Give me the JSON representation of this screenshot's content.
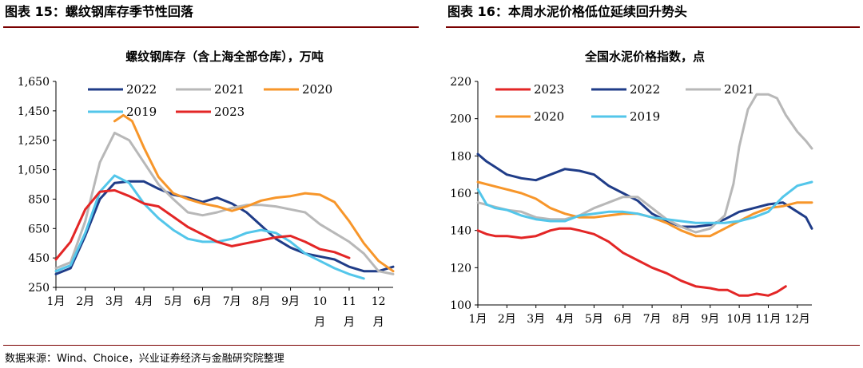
{
  "headers": {
    "left": "图表 15：螺纹钢库存季节性回落",
    "right": "图表 16：本周水泥价格低位延续回升势头"
  },
  "source": "数据来源：Wind、Choice，兴业证券经济与金融研究院整理",
  "colors": {
    "2023": "#e32626",
    "2022": "#1f3c88",
    "2021": "#b8b8b8",
    "2020": "#f7962a",
    "2019": "#53c6ea",
    "header_rule": "#7a0000"
  },
  "chart_data": [
    {
      "type": "line",
      "title": "螺纹钢库存（含上海全部仓库），万吨",
      "ylim": [
        250,
        1650
      ],
      "yticks": [
        "1,650",
        "1,450",
        "1,250",
        "1,050",
        "850",
        "650",
        "450",
        "250"
      ],
      "ytick_values": [
        1650,
        1450,
        1250,
        1050,
        850,
        650,
        450,
        250
      ],
      "xticks": [
        "1月",
        "2月",
        "3月",
        "4月",
        "5月",
        "6月",
        "7月",
        "8月",
        "9月",
        "10",
        "11",
        "12"
      ],
      "xticks_sub": [
        "",
        "",
        "",
        "",
        "",
        "",
        "",
        "",
        "",
        "月",
        "月",
        "月"
      ],
      "xlim": [
        0,
        11.5
      ],
      "legend": "top",
      "series": [
        {
          "name": "2022",
          "color_key": "2022",
          "x": [
            0,
            0.5,
            1,
            1.5,
            2,
            2.5,
            3,
            3.5,
            4,
            4.5,
            5,
            5.5,
            6,
            6.5,
            7,
            7.5,
            8,
            8.5,
            9,
            9.5,
            10,
            10.5,
            11,
            11.5
          ],
          "y": [
            340,
            380,
            600,
            850,
            960,
            970,
            970,
            920,
            880,
            860,
            830,
            860,
            820,
            760,
            670,
            580,
            520,
            480,
            460,
            440,
            390,
            360,
            360,
            390
          ]
        },
        {
          "name": "2021",
          "color_key": "2021",
          "x": [
            0,
            0.5,
            1,
            1.5,
            2,
            2.5,
            3,
            3.5,
            4,
            4.5,
            5,
            5.5,
            6,
            6.5,
            7,
            7.5,
            8,
            8.5,
            9,
            9.5,
            10,
            10.5,
            11,
            11.5
          ],
          "y": [
            380,
            420,
            700,
            1100,
            1300,
            1250,
            1100,
            950,
            850,
            760,
            740,
            760,
            790,
            810,
            810,
            800,
            780,
            760,
            680,
            620,
            560,
            480,
            360,
            340
          ]
        },
        {
          "name": "2020",
          "color_key": "2020",
          "x": [
            2,
            2.3,
            2.6,
            3,
            3.5,
            4,
            4.5,
            5,
            5.5,
            6,
            6.5,
            7,
            7.5,
            8,
            8.5,
            9,
            9.5,
            10,
            10.5,
            11,
            11.5
          ],
          "y": [
            1380,
            1420,
            1380,
            1200,
            1000,
            890,
            850,
            820,
            800,
            770,
            800,
            840,
            860,
            870,
            890,
            880,
            830,
            700,
            550,
            430,
            360
          ]
        },
        {
          "name": "2019",
          "color_key": "2019",
          "x": [
            0,
            0.5,
            1,
            1.5,
            2,
            2.5,
            3,
            3.5,
            4,
            4.5,
            5,
            5.5,
            6,
            6.5,
            7,
            7.5,
            8,
            8.5,
            9,
            9.5,
            10,
            10.5
          ],
          "y": [
            360,
            400,
            620,
            900,
            1010,
            960,
            820,
            720,
            640,
            580,
            560,
            560,
            580,
            620,
            640,
            620,
            560,
            480,
            430,
            380,
            340,
            310
          ]
        },
        {
          "name": "2023",
          "color_key": "2023",
          "x": [
            0,
            0.5,
            1,
            1.5,
            2,
            2.5,
            3,
            3.5,
            4,
            4.5,
            5,
            5.5,
            6,
            6.5,
            7,
            7.5,
            8,
            8.5,
            9,
            9.5,
            10
          ],
          "y": [
            440,
            560,
            780,
            900,
            910,
            870,
            820,
            800,
            730,
            660,
            610,
            560,
            530,
            550,
            570,
            590,
            600,
            560,
            510,
            490,
            450
          ]
        }
      ]
    },
    {
      "type": "line",
      "title": "全国水泥价格指数，点",
      "ylim": [
        100,
        220
      ],
      "yticks": [
        "220",
        "200",
        "180",
        "160",
        "140",
        "120",
        "100"
      ],
      "ytick_values": [
        220,
        200,
        180,
        160,
        140,
        120,
        100
      ],
      "xticks": [
        "1月",
        "2月",
        "3月",
        "4月",
        "5月",
        "6月",
        "7月",
        "8月",
        "9月",
        "10月",
        "11月",
        "12月"
      ],
      "xlim": [
        0,
        11.5
      ],
      "legend": "top",
      "series": [
        {
          "name": "2023",
          "color_key": "2023",
          "x": [
            0,
            0.3,
            0.6,
            1,
            1.5,
            2,
            2.5,
            2.8,
            3.2,
            3.5,
            4,
            4.5,
            5,
            5.5,
            6,
            6.5,
            7,
            7.5,
            8,
            8.3,
            8.6,
            9,
            9.3,
            9.6,
            10,
            10.3,
            10.6
          ],
          "y": [
            140,
            138,
            137,
            137,
            136,
            137,
            140,
            141,
            141,
            140,
            138,
            134,
            128,
            124,
            120,
            117,
            113,
            110,
            109,
            108,
            108,
            105,
            105,
            106,
            105,
            107,
            110
          ]
        },
        {
          "name": "2022",
          "color_key": "2022",
          "x": [
            0,
            0.3,
            0.6,
            1,
            1.5,
            2,
            2.5,
            3,
            3.5,
            4,
            4.5,
            5,
            5.5,
            6,
            6.5,
            7,
            7.5,
            8,
            8.5,
            9,
            9.5,
            10,
            10.5,
            11,
            11.3,
            11.5
          ],
          "y": [
            181,
            177,
            174,
            170,
            168,
            167,
            170,
            173,
            172,
            170,
            164,
            160,
            156,
            149,
            145,
            142,
            142,
            143,
            146,
            150,
            152,
            154,
            155,
            150,
            147,
            141
          ]
        },
        {
          "name": "2021",
          "color_key": "2021",
          "x": [
            0,
            0.5,
            1,
            1.5,
            2,
            2.5,
            3,
            3.5,
            4,
            4.5,
            5,
            5.5,
            6,
            6.5,
            7,
            7.5,
            8,
            8.5,
            8.8,
            9,
            9.3,
            9.6,
            10,
            10.3,
            10.6,
            11,
            11.3,
            11.5
          ],
          "y": [
            155,
            153,
            151,
            150,
            147,
            146,
            146,
            148,
            152,
            155,
            158,
            158,
            152,
            146,
            142,
            139,
            141,
            148,
            165,
            185,
            205,
            213,
            213,
            211,
            202,
            193,
            188,
            184
          ]
        },
        {
          "name": "2020",
          "color_key": "2020",
          "x": [
            0,
            0.5,
            1,
            1.5,
            2,
            2.5,
            3,
            3.5,
            4,
            4.5,
            5,
            5.5,
            6,
            6.5,
            7,
            7.5,
            8,
            8.5,
            9,
            9.5,
            10,
            10.5,
            11,
            11.5
          ],
          "y": [
            166,
            164,
            162,
            160,
            157,
            152,
            149,
            147,
            147,
            148,
            149,
            149,
            147,
            144,
            140,
            137,
            137,
            141,
            145,
            149,
            152,
            153,
            155,
            155
          ]
        },
        {
          "name": "2019",
          "color_key": "2019",
          "x": [
            0,
            0.3,
            0.6,
            1,
            1.5,
            2,
            2.5,
            3,
            3.5,
            4,
            4.5,
            5,
            5.5,
            6,
            6.5,
            7,
            7.5,
            8,
            8.5,
            9,
            9.5,
            10,
            10.5,
            11,
            11.5
          ],
          "y": [
            162,
            154,
            152,
            151,
            148,
            146,
            145,
            145,
            148,
            149,
            150,
            150,
            149,
            147,
            146,
            145,
            144,
            144,
            144,
            145,
            147,
            150,
            158,
            164,
            166
          ]
        }
      ]
    }
  ]
}
